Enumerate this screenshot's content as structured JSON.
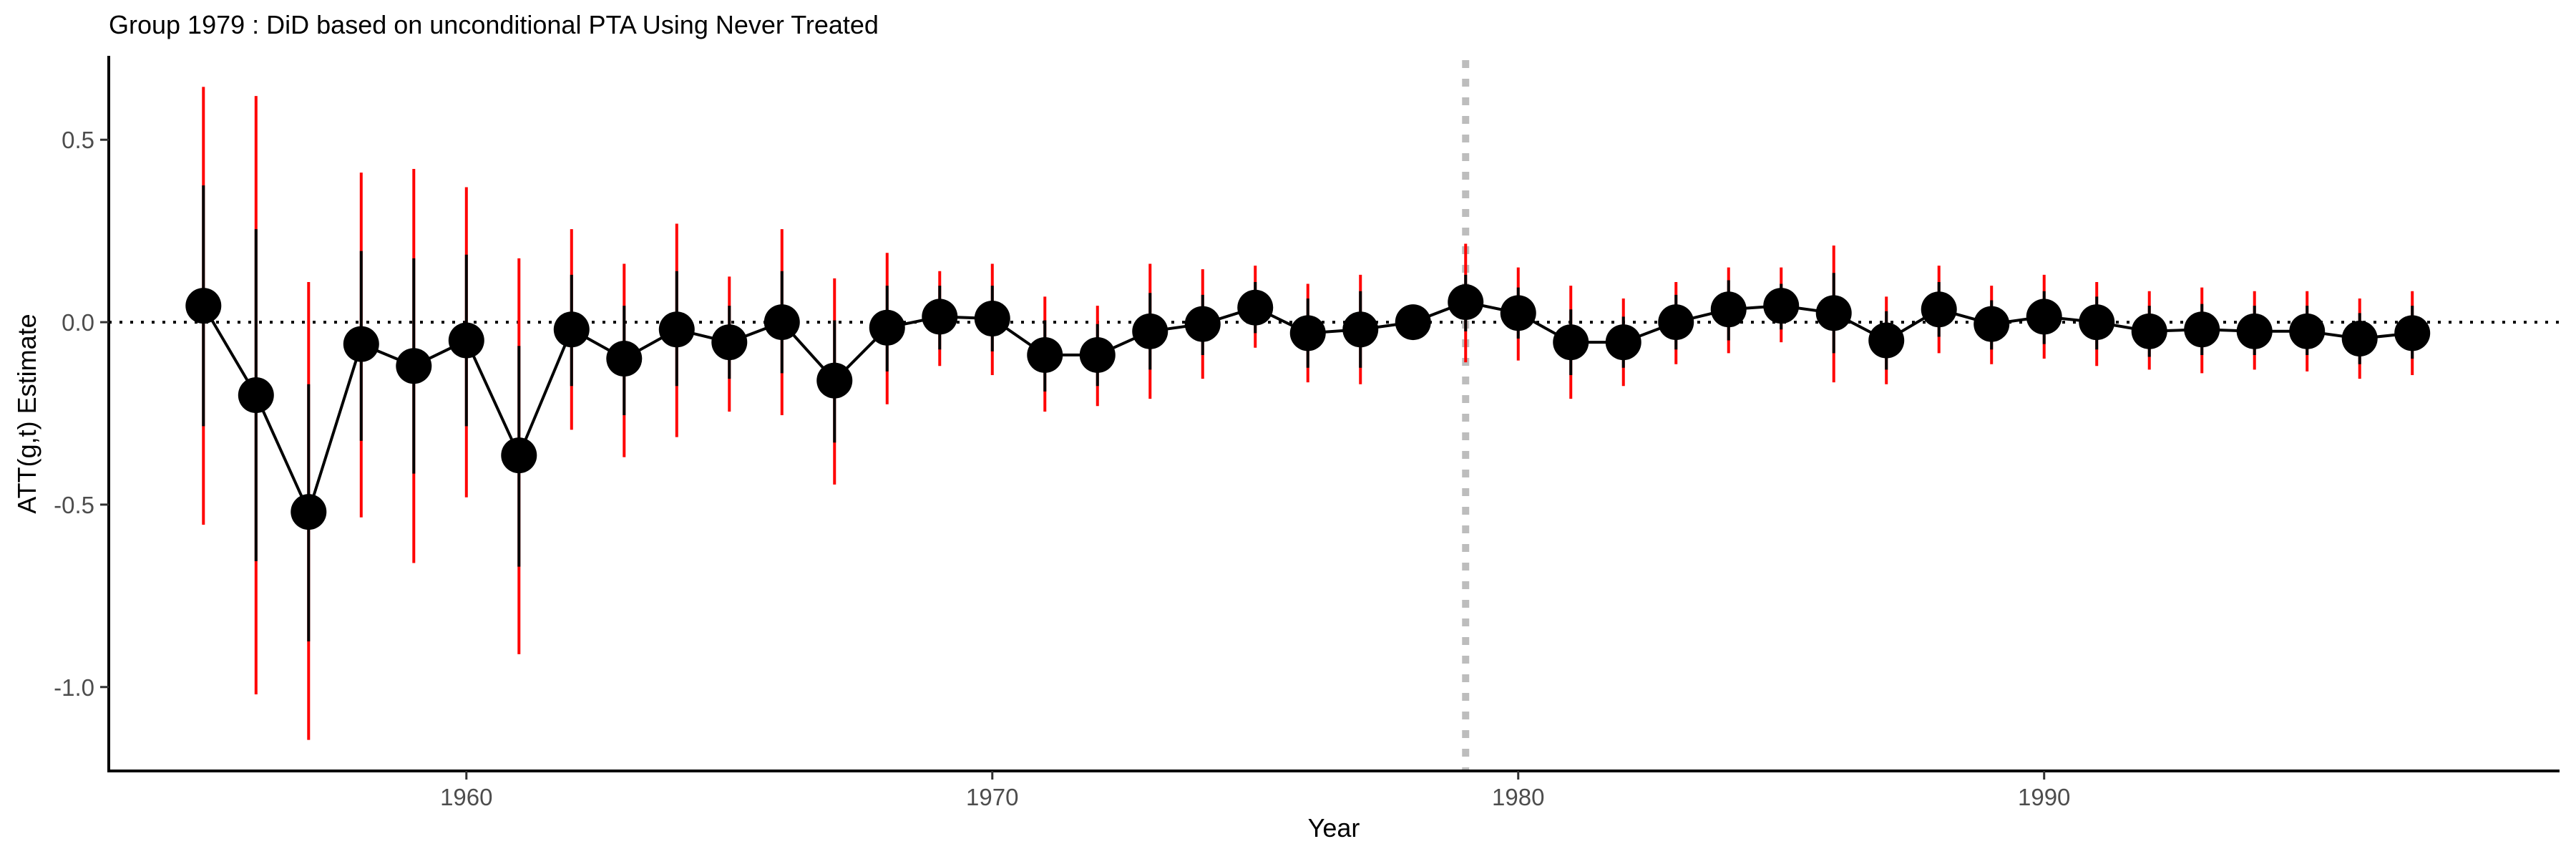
{
  "chart_data": {
    "type": "scatter",
    "title": "Group 1979 : DiD based on unconditional PTA Using Never Treated",
    "xlabel": "Year",
    "ylabel": "ATT(g,t) Estimate",
    "xlim": [
      1953.2,
      1999.8
    ],
    "ylim": [
      -1.23,
      0.73
    ],
    "x_ticks": [
      1960,
      1970,
      1980,
      1990
    ],
    "x_tick_labels": [
      "1960",
      "1970",
      "1980",
      "1990"
    ],
    "y_ticks": [
      0.5,
      0.0,
      -0.5,
      -1.0
    ],
    "y_tick_labels": [
      "0.5",
      "0.0",
      "-0.5",
      "-1.0"
    ],
    "treatment_year_line": 1979,
    "zero_line": 0,
    "grid": false,
    "colors": {
      "point": "#000000",
      "line": "#000000",
      "inner_interval": "#000000",
      "outer_interval": "#ff0000",
      "treatment_line": "#bdbdbd"
    },
    "series": [
      {
        "x": [
          1955,
          1956,
          1957,
          1958,
          1959,
          1960,
          1961,
          1962,
          1963,
          1964,
          1965,
          1966,
          1967,
          1968,
          1969,
          1970,
          1971,
          1972,
          1973,
          1974,
          1975,
          1976,
          1977,
          1978,
          1979,
          1980,
          1981,
          1982,
          1983,
          1984,
          1985,
          1986,
          1987,
          1988,
          1989,
          1990,
          1991,
          1992,
          1993,
          1994,
          1995,
          1996,
          1997
        ],
        "att": [
          0.045,
          -0.2,
          -0.52,
          -0.06,
          -0.12,
          -0.05,
          -0.365,
          -0.02,
          -0.1,
          -0.02,
          -0.055,
          0.0,
          -0.16,
          -0.015,
          0.015,
          0.01,
          -0.09,
          -0.09,
          -0.025,
          -0.005,
          0.04,
          -0.03,
          -0.02,
          0.0,
          0.055,
          0.025,
          -0.055,
          -0.055,
          0.0,
          0.035,
          0.045,
          0.025,
          -0.05,
          0.035,
          -0.005,
          0.015,
          0.0,
          -0.025,
          -0.02,
          -0.025,
          -0.025,
          -0.045,
          -0.03
        ],
        "ci_inner_lower": [
          -0.285,
          -0.655,
          -0.875,
          -0.325,
          -0.415,
          -0.285,
          -0.67,
          -0.175,
          -0.255,
          -0.175,
          -0.155,
          -0.14,
          -0.33,
          -0.135,
          -0.075,
          -0.08,
          -0.19,
          -0.175,
          -0.13,
          -0.09,
          -0.03,
          -0.125,
          -0.125,
          -0.04,
          -0.025,
          -0.045,
          -0.145,
          -0.125,
          -0.075,
          -0.05,
          -0.02,
          -0.085,
          -0.13,
          -0.04,
          -0.075,
          -0.06,
          -0.075,
          -0.095,
          -0.09,
          -0.09,
          -0.09,
          -0.115,
          -0.1
        ],
        "ci_inner_upper": [
          0.375,
          0.255,
          -0.17,
          0.195,
          0.175,
          0.185,
          -0.065,
          0.13,
          0.045,
          0.14,
          0.045,
          0.14,
          0.005,
          0.1,
          0.1,
          0.1,
          0.005,
          -0.005,
          0.08,
          0.075,
          0.11,
          0.065,
          0.085,
          0.04,
          0.13,
          0.095,
          0.035,
          0.015,
          0.075,
          0.115,
          0.105,
          0.135,
          0.03,
          0.11,
          0.06,
          0.085,
          0.07,
          0.045,
          0.05,
          0.045,
          0.045,
          0.025,
          0.045
        ],
        "ci_outer_lower": [
          -0.555,
          -1.02,
          -1.145,
          -0.535,
          -0.66,
          -0.48,
          -0.91,
          -0.295,
          -0.37,
          -0.315,
          -0.245,
          -0.255,
          -0.445,
          -0.225,
          -0.12,
          -0.145,
          -0.245,
          -0.23,
          -0.21,
          -0.155,
          -0.07,
          -0.165,
          -0.17,
          -0.04,
          -0.11,
          -0.105,
          -0.21,
          -0.175,
          -0.115,
          -0.085,
          -0.055,
          -0.165,
          -0.17,
          -0.085,
          -0.115,
          -0.1,
          -0.12,
          -0.13,
          -0.14,
          -0.13,
          -0.135,
          -0.155,
          -0.145
        ],
        "ci_outer_upper": [
          0.645,
          0.62,
          0.11,
          0.41,
          0.42,
          0.37,
          0.175,
          0.255,
          0.16,
          0.27,
          0.125,
          0.255,
          0.12,
          0.19,
          0.14,
          0.16,
          0.07,
          0.045,
          0.16,
          0.145,
          0.155,
          0.105,
          0.13,
          0.04,
          0.215,
          0.15,
          0.1,
          0.065,
          0.11,
          0.15,
          0.15,
          0.21,
          0.07,
          0.155,
          0.1,
          0.13,
          0.11,
          0.085,
          0.095,
          0.085,
          0.085,
          0.065,
          0.085
        ]
      }
    ]
  }
}
